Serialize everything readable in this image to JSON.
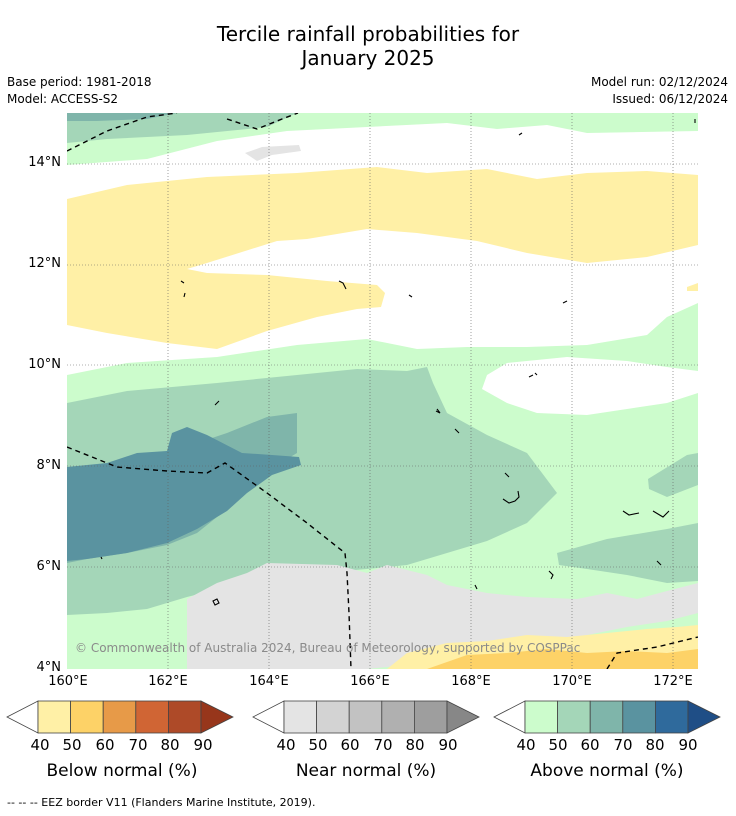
{
  "title": {
    "line1": "Tercile rainfall probabilities for",
    "line2": "January 2025"
  },
  "meta": {
    "base_period": "Base period: 1981-2018",
    "model": "Model: ACCESS-S2",
    "model_run": "Model run: 02/12/2024",
    "issued": "Issued: 06/12/2024"
  },
  "map": {
    "lat_labels": [
      "14°N",
      "12°N",
      "10°N",
      "8°N",
      "6°N",
      "4°N"
    ],
    "lon_labels": [
      "160°E",
      "162°E",
      "164°E",
      "166°E",
      "168°E",
      "170°E",
      "172°E"
    ],
    "copyright": "© Commonwealth of Australia 2024, Bureau of Meteorology, supported by COSPPac"
  },
  "legends": {
    "below": {
      "title": "Below normal (%)",
      "ticks": [
        "40",
        "50",
        "60",
        "70",
        "80",
        "90"
      ],
      "colors": [
        "#fff0a6",
        "#fdd267",
        "#e79a48",
        "#d06534",
        "#ae4a28",
        "#97361b"
      ]
    },
    "near": {
      "title": "Near normal (%)",
      "ticks": [
        "40",
        "50",
        "60",
        "70",
        "80",
        "90"
      ],
      "colors": [
        "#e4e4e4",
        "#d3d3d3",
        "#c2c2c2",
        "#b0b0b0",
        "#9e9e9e",
        "#878787"
      ]
    },
    "above": {
      "title": "Above normal (%)",
      "ticks": [
        "40",
        "50",
        "60",
        "70",
        "80",
        "90"
      ],
      "colors": [
        "#ccfccc",
        "#a4d6b8",
        "#7fb5aa",
        "#5a93a0",
        "#2f6a9c",
        "#1f4e86"
      ]
    }
  },
  "footer": "-- -- -- EEZ border V11 (Flanders Marine Institute, 2019)."
}
